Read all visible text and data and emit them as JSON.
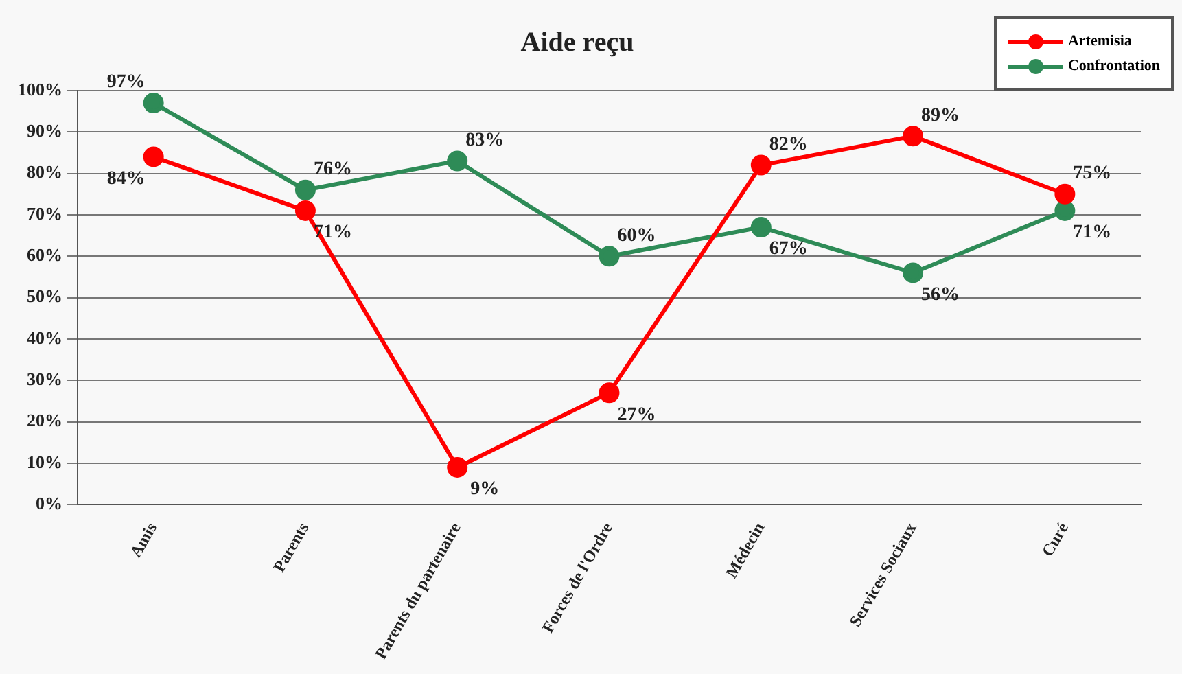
{
  "chart_data": {
    "type": "line",
    "title": "Aide reçu",
    "categories": [
      "Amis",
      "Parents",
      "Parents du partenaire",
      "Forces de l'Ordre",
      "Médecin",
      "Services Sociaux",
      "Curé"
    ],
    "series": [
      {
        "name": "Artemisia",
        "color": "#ff0000",
        "values": [
          84,
          71,
          9,
          27,
          82,
          89,
          75
        ],
        "value_labels": [
          "84%",
          "71%",
          "9%",
          "27%",
          "82%",
          "89%",
          "75%"
        ]
      },
      {
        "name": "Confrontation",
        "color": "#2e8b57",
        "values": [
          97,
          76,
          83,
          60,
          67,
          56,
          71
        ],
        "value_labels": [
          "97%",
          "76%",
          "83%",
          "60%",
          "67%",
          "56%",
          "71%"
        ]
      }
    ],
    "ylim": [
      0,
      100
    ],
    "yticks": [
      {
        "value": 0,
        "label": "0%"
      },
      {
        "value": 10,
        "label": "10%"
      },
      {
        "value": 20,
        "label": "20%"
      },
      {
        "value": 30,
        "label": "30%"
      },
      {
        "value": 40,
        "label": "40%"
      },
      {
        "value": 50,
        "label": "50%"
      },
      {
        "value": 60,
        "label": "60%"
      },
      {
        "value": 70,
        "label": "70%"
      },
      {
        "value": 80,
        "label": "80%"
      },
      {
        "value": 90,
        "label": "90%"
      },
      {
        "value": 100,
        "label": "100%"
      }
    ],
    "grid": "y",
    "legend": "top right",
    "marker": "circle",
    "line_style": "solid"
  }
}
